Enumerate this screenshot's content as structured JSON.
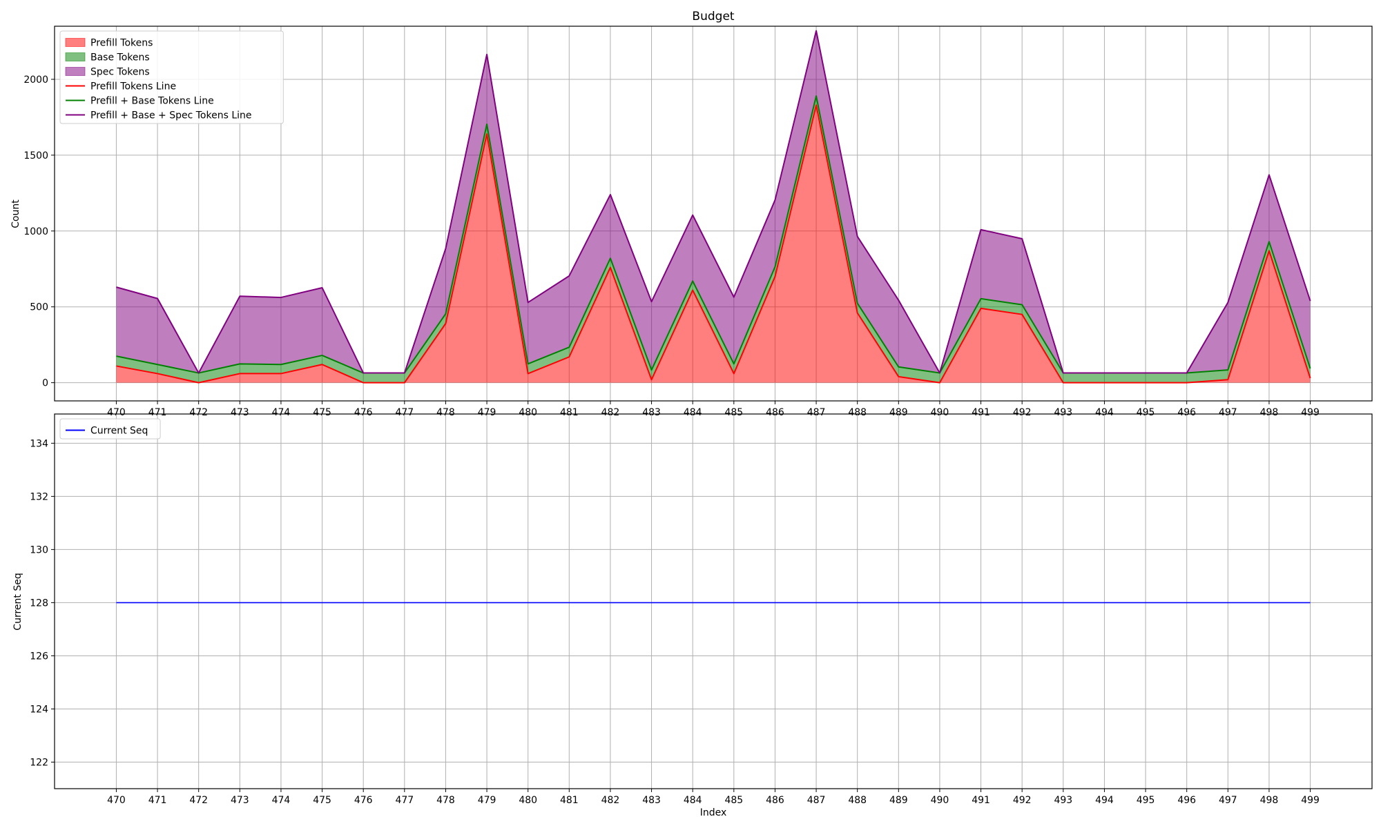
{
  "chart_data": [
    {
      "type": "area",
      "title": "Budget",
      "xlabel": "",
      "ylabel": "Count",
      "x": [
        470,
        471,
        472,
        473,
        474,
        475,
        476,
        477,
        478,
        479,
        480,
        481,
        482,
        483,
        484,
        485,
        486,
        487,
        488,
        489,
        490,
        491,
        492,
        493,
        494,
        495,
        496,
        497,
        498,
        499
      ],
      "xlim": [
        468.5,
        500.5
      ],
      "ylim": [
        -120,
        2350
      ],
      "yticks": [
        0,
        500,
        1000,
        1500,
        2000
      ],
      "grid": true,
      "legend_loc": "upper left",
      "series": [
        {
          "name": "Prefill Tokens",
          "kind": "area",
          "color": "#ff0000",
          "alpha": 0.5,
          "values": [
            110,
            60,
            0,
            60,
            60,
            120,
            0,
            0,
            390,
            1640,
            60,
            170,
            760,
            20,
            610,
            60,
            700,
            1830,
            460,
            40,
            0,
            490,
            450,
            0,
            0,
            0,
            0,
            20,
            870,
            30
          ]
        },
        {
          "name": "Base Tokens",
          "kind": "area",
          "color": "#008000",
          "alpha": 0.5,
          "values": [
            65,
            60,
            64,
            64,
            60,
            60,
            64,
            64,
            64,
            64,
            64,
            64,
            60,
            64,
            60,
            64,
            64,
            60,
            64,
            64,
            64,
            64,
            64,
            64,
            64,
            64,
            64,
            64,
            60,
            64
          ]
        },
        {
          "name": "Spec Tokens",
          "kind": "area",
          "color": "#800080",
          "alpha": 0.5,
          "values": [
            455,
            435,
            0,
            446,
            442,
            446,
            0,
            0,
            430,
            460,
            405,
            470,
            420,
            450,
            435,
            440,
            440,
            430,
            440,
            440,
            0,
            455,
            435,
            0,
            0,
            0,
            0,
            445,
            440,
            445
          ]
        },
        {
          "name": "Prefill Tokens Line",
          "kind": "line",
          "color": "#ff0000",
          "stack": 1
        },
        {
          "name": "Prefill + Base Tokens Line",
          "kind": "line",
          "color": "#008000",
          "stack": 2
        },
        {
          "name": "Prefill + Base + Spec Tokens Line",
          "kind": "line",
          "color": "#800080",
          "stack": 3
        }
      ]
    },
    {
      "type": "line",
      "title": "",
      "xlabel": "Index",
      "ylabel": "Current Seq",
      "x": [
        470,
        471,
        472,
        473,
        474,
        475,
        476,
        477,
        478,
        479,
        480,
        481,
        482,
        483,
        484,
        485,
        486,
        487,
        488,
        489,
        490,
        491,
        492,
        493,
        494,
        495,
        496,
        497,
        498,
        499
      ],
      "xlim": [
        468.5,
        500.5
      ],
      "ylim": [
        121,
        135.1
      ],
      "yticks": [
        122,
        124,
        126,
        128,
        130,
        132,
        134
      ],
      "grid": true,
      "legend_loc": "upper left",
      "series": [
        {
          "name": "Current Seq",
          "kind": "line",
          "color": "#0000ff",
          "values": [
            128,
            128,
            128,
            128,
            128,
            128,
            128,
            128,
            128,
            128,
            128,
            128,
            128,
            128,
            128,
            128,
            128,
            128,
            128,
            128,
            128,
            128,
            128,
            128,
            128,
            128,
            128,
            128,
            128,
            128
          ]
        }
      ]
    }
  ]
}
